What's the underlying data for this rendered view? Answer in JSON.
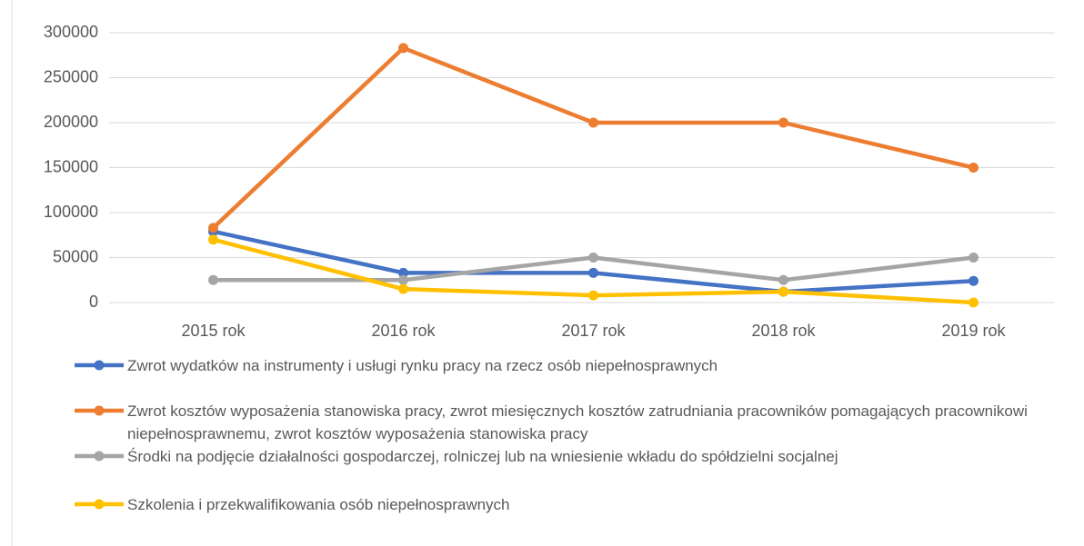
{
  "chart_data": {
    "type": "line",
    "categories": [
      "2015 rok",
      "2016 rok",
      "2017 rok",
      "2018 rok",
      "2019 rok"
    ],
    "series": [
      {
        "name": "Zwrot wydatków na instrumenty i usługi rynku pracy na rzecz osób niepełnosprawnych",
        "color": "#4472c4",
        "values": [
          79000,
          33000,
          33000,
          12000,
          24000
        ]
      },
      {
        "name": "Zwrot kosztów wyposażenia stanowiska pracy, zwrot miesięcznych kosztów zatrudniania pracowników pomagających pracownikowi niepełnosprawnemu, zwrot kosztów wyposażenia stanowiska pracy",
        "color": "#ed7d31",
        "values": [
          83000,
          283000,
          200000,
          200000,
          150000
        ]
      },
      {
        "name": "Środki na podjęcie działalności gospodarczej, rolniczej lub na wniesienie wkładu do spółdzielni socjalnej",
        "color": "#a5a5a5",
        "values": [
          25000,
          25000,
          50000,
          25000,
          50000
        ]
      },
      {
        "name": "Szkolenia i przekwalifikowania osób niepełnosprawnych",
        "color": "#ffc000",
        "values": [
          70000,
          15000,
          8000,
          12000,
          0
        ]
      }
    ],
    "ylim": [
      0,
      300000
    ],
    "yticks": [
      0,
      50000,
      100000,
      150000,
      200000,
      250000,
      300000
    ],
    "grid": true,
    "legend": "bottom"
  }
}
